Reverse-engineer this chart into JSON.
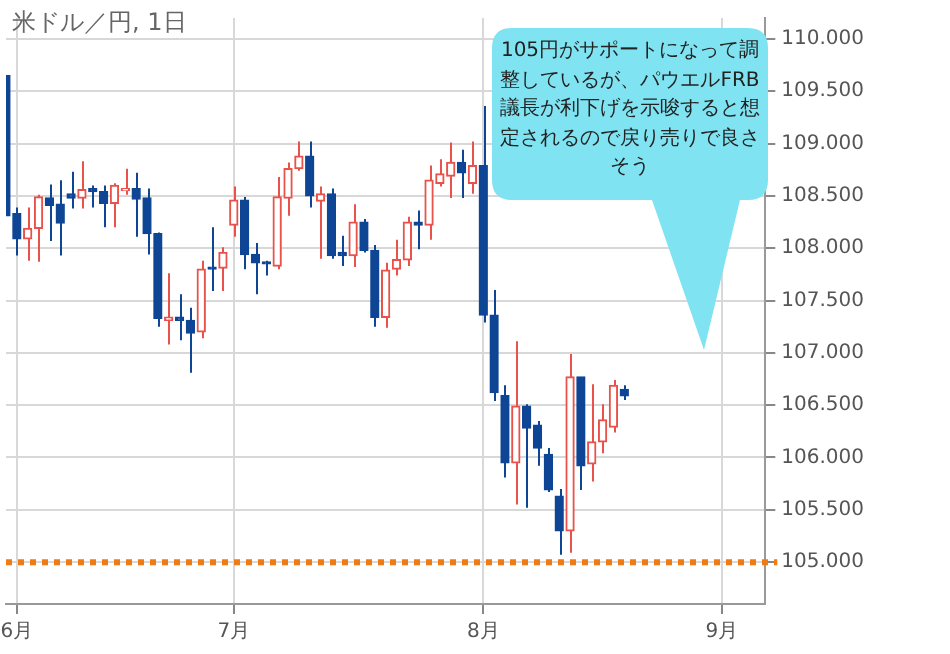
{
  "chart_data": {
    "type": "candlestick",
    "title": "米ドル／円, 1日",
    "categories": [
      null,
      "6月",
      null,
      null,
      null,
      null,
      null,
      null,
      null,
      null,
      null,
      null,
      null,
      null,
      null,
      null,
      null,
      null,
      null,
      null,
      null,
      "7月",
      null,
      null,
      null,
      null,
      null,
      null,
      null,
      null,
      null,
      null,
      null,
      null,
      null,
      null,
      null,
      null,
      null,
      null,
      null,
      null,
      null,
      null,
      "8月",
      null,
      null,
      null,
      null,
      null,
      null,
      null,
      null,
      null,
      null,
      null,
      null,
      null,
      null,
      null,
      null,
      null,
      null,
      null,
      null,
      null,
      "9月",
      null,
      null,
      null,
      null
    ],
    "ohlc": [
      [
        109.65,
        109.65,
        108.31,
        108.31
      ],
      [
        108.33,
        108.39,
        107.93,
        108.09
      ],
      [
        108.09,
        108.39,
        107.88,
        108.19
      ],
      [
        108.19,
        108.51,
        107.87,
        108.49
      ],
      [
        108.48,
        108.61,
        108.07,
        108.41
      ],
      [
        108.42,
        108.65,
        107.93,
        108.24
      ],
      [
        108.52,
        108.73,
        108.38,
        108.48
      ],
      [
        108.48,
        108.83,
        108.38,
        108.56
      ],
      [
        108.57,
        108.6,
        108.39,
        108.54
      ],
      [
        108.54,
        108.6,
        108.2,
        108.43
      ],
      [
        108.43,
        108.62,
        108.2,
        108.6
      ],
      [
        108.55,
        108.76,
        108.51,
        108.57
      ],
      [
        108.57,
        108.72,
        108.11,
        108.47
      ],
      [
        108.48,
        108.57,
        107.94,
        108.14
      ],
      [
        108.14,
        108.15,
        107.25,
        107.33
      ],
      [
        107.31,
        107.76,
        107.08,
        107.34
      ],
      [
        107.34,
        107.56,
        107.12,
        107.31
      ],
      [
        107.31,
        107.43,
        106.81,
        107.19
      ],
      [
        107.2,
        107.88,
        107.14,
        107.8
      ],
      [
        107.82,
        108.2,
        107.59,
        107.8
      ],
      [
        107.81,
        108.01,
        107.59,
        107.96
      ],
      [
        108.22,
        108.59,
        108.11,
        108.46
      ],
      [
        108.46,
        108.49,
        107.8,
        107.94
      ],
      [
        107.94,
        108.05,
        107.56,
        107.86
      ],
      [
        107.87,
        107.88,
        107.74,
        107.85
      ],
      [
        107.83,
        108.68,
        107.8,
        108.49
      ],
      [
        108.48,
        108.82,
        108.31,
        108.76
      ],
      [
        108.76,
        109.02,
        108.74,
        108.88
      ],
      [
        108.88,
        109.02,
        108.39,
        108.5
      ],
      [
        108.45,
        108.59,
        107.9,
        108.52
      ],
      [
        108.52,
        108.57,
        107.9,
        107.93
      ],
      [
        107.96,
        108.12,
        107.83,
        107.93
      ],
      [
        107.93,
        108.42,
        107.82,
        108.25
      ],
      [
        108.25,
        108.28,
        107.96,
        107.98
      ],
      [
        107.98,
        108.03,
        107.25,
        107.34
      ],
      [
        107.34,
        107.86,
        107.24,
        107.79
      ],
      [
        107.8,
        108.08,
        107.74,
        107.89
      ],
      [
        107.89,
        108.3,
        107.83,
        108.25
      ],
      [
        108.25,
        108.36,
        107.99,
        108.22
      ],
      [
        108.22,
        108.79,
        108.08,
        108.65
      ],
      [
        108.62,
        108.85,
        108.59,
        108.71
      ],
      [
        108.69,
        109.01,
        108.48,
        108.82
      ],
      [
        108.82,
        108.94,
        108.48,
        108.72
      ],
      [
        108.62,
        109.02,
        108.52,
        108.79
      ],
      [
        108.79,
        109.36,
        107.29,
        107.36
      ],
      [
        107.36,
        107.6,
        106.54,
        106.62
      ],
      [
        106.59,
        106.69,
        105.81,
        105.95
      ],
      [
        105.95,
        107.11,
        105.55,
        106.49
      ],
      [
        106.49,
        106.51,
        105.52,
        106.28
      ],
      [
        106.31,
        106.35,
        105.92,
        106.09
      ],
      [
        106.03,
        106.09,
        105.67,
        105.69
      ],
      [
        105.63,
        105.7,
        105.07,
        105.3
      ],
      [
        105.3,
        106.99,
        105.09,
        106.77
      ],
      [
        106.77,
        106.77,
        105.69,
        105.92
      ],
      [
        105.94,
        106.7,
        105.77,
        106.15
      ],
      [
        106.15,
        106.51,
        106.04,
        106.36
      ],
      [
        106.29,
        106.74,
        106.24,
        106.69
      ],
      [
        106.65,
        106.69,
        106.55,
        106.59
      ],
      null,
      null,
      null,
      null,
      null,
      null,
      null,
      null,
      null,
      null,
      null,
      null,
      null
    ],
    "colors": [
      "#0e4595",
      "#0e4595",
      "#e8524a",
      "#e8524a",
      "#0e4595",
      "#0e4595",
      "#0e4595",
      "#e8524a",
      "#0e4595",
      "#0e4595",
      "#e8524a",
      "#e8524a",
      "#0e4595",
      "#0e4595",
      "#0e4595",
      "#e8524a",
      "#0e4595",
      "#0e4595",
      "#e8524a",
      "#0e4595",
      "#e8524a",
      "#e8524a",
      "#0e4595",
      "#0e4595",
      "#0e4595",
      "#e8524a",
      "#e8524a",
      "#e8524a",
      "#0e4595",
      "#e8524a",
      "#0e4595",
      "#0e4595",
      "#e8524a",
      "#0e4595",
      "#0e4595",
      "#e8524a",
      "#e8524a",
      "#e8524a",
      "#0e4595",
      "#e8524a",
      "#e8524a",
      "#e8524a",
      "#0e4595",
      "#e8524a",
      "#0e4595",
      "#0e4595",
      "#0e4595",
      "#e8524a",
      "#0e4595",
      "#0e4595",
      "#0e4595",
      "#0e4595",
      "#e8524a",
      "#0e4595",
      "#e8524a",
      "#e8524a",
      "#e8524a",
      "#0e4595",
      null,
      null,
      null,
      null,
      null,
      null,
      null,
      null,
      null,
      null,
      null,
      null,
      null
    ],
    "ylim": [
      104.6,
      110.2
    ],
    "yticks": [
      {
        "value": 105,
        "label": "105.000"
      },
      {
        "value": 105.5,
        "label": "105.500"
      },
      {
        "value": 106,
        "label": "106.000"
      },
      {
        "value": 106.5,
        "label": "106.500"
      },
      {
        "value": 107,
        "label": "107.000"
      },
      {
        "value": 107.5,
        "label": "107.500"
      },
      {
        "value": 108,
        "label": "108.000"
      },
      {
        "value": 108.5,
        "label": "108.500"
      },
      {
        "value": 109,
        "label": "109.000"
      },
      {
        "value": 109.5,
        "label": "109.500"
      },
      {
        "value": 110,
        "label": "110.000"
      }
    ],
    "grid": true,
    "ref_lines": [
      {
        "axis": "y",
        "value": 105,
        "color": "#f07a14",
        "line_style": "dotted"
      }
    ],
    "annotations": [
      "105円がサポートになって調整しているが、パウエルFRB議長が利下げを示唆すると想定されるので戻り売りで良さそう"
    ]
  }
}
